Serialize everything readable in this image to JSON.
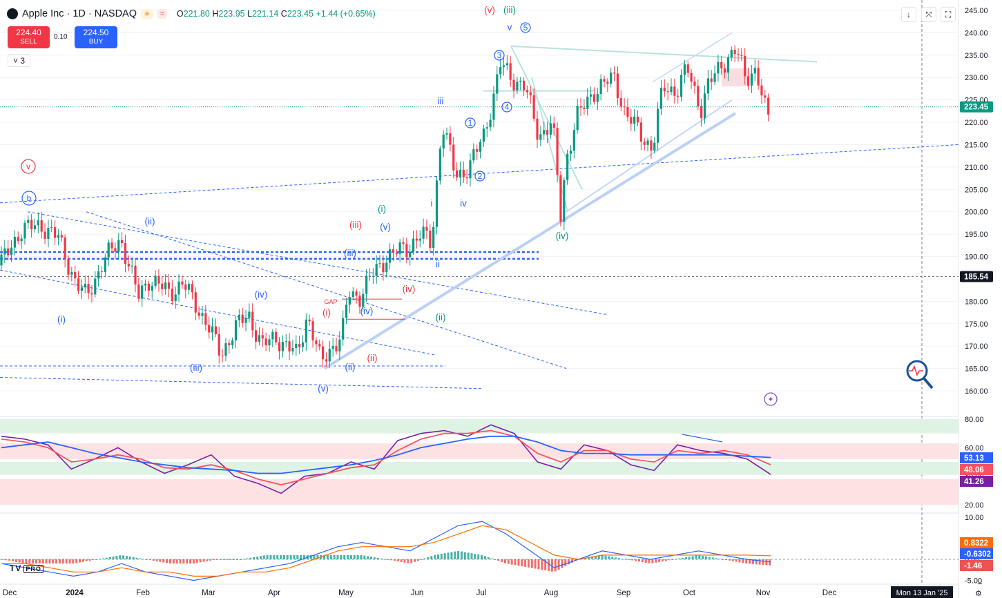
{
  "header": {
    "symbol": "Apple Inc · 1D · NASDAQ",
    "open_label": "O",
    "open": "221.80",
    "high_label": "H",
    "high": "223.95",
    "low_label": "L",
    "low": "221.14",
    "close_label": "C",
    "close": "223.45",
    "change": "+1.44 (+0.65%)"
  },
  "trade": {
    "sell_price": "224.40",
    "sell_label": "SELL",
    "spread": "0.10",
    "buy_price": "224.50",
    "buy_label": "BUY"
  },
  "indicator_count": "3",
  "toolbar": {
    "download": "↓",
    "fullscreen_toggle": "⤧",
    "screenshot": "⛶"
  },
  "brand": {
    "name": "TV",
    "tier": "PRO"
  },
  "colors": {
    "up": "#089981",
    "down": "#f23645",
    "wave_blue": "#2962ff",
    "wave_red": "#f23645",
    "wave_green": "#089981",
    "rsi": "#7b1fa2",
    "rsi_ma": "#2962ff",
    "rsi_smooth": "#f7525f"
  },
  "chart_data": [
    {
      "type": "candlestick",
      "title": "Apple Inc · 1D · NASDAQ",
      "ylim": [
        155,
        245
      ],
      "y_ticks": [
        "245.00",
        "240.00",
        "235.00",
        "230.00",
        "225.00",
        "220.00",
        "215.00",
        "210.00",
        "205.00",
        "200.00",
        "195.00",
        "190.00",
        "185.00",
        "180.00",
        "175.00",
        "170.00",
        "165.00",
        "160.00"
      ],
      "x_ticks": [
        "Dec",
        "2024",
        "Feb",
        "Mar",
        "Apr",
        "May",
        "Jun",
        "Jul",
        "Aug",
        "Sep",
        "Oct",
        "Nov",
        "Dec"
      ],
      "last_price": "223.45",
      "marked_price": "185.54",
      "crosshair_date": "Mon 13 Jan '25",
      "close_path": [
        [
          0,
          188
        ],
        [
          30,
          196
        ],
        [
          60,
          197
        ],
        [
          85,
          194
        ],
        [
          110,
          184
        ],
        [
          125,
          181
        ],
        [
          150,
          189
        ],
        [
          175,
          194
        ],
        [
          200,
          181
        ],
        [
          215,
          185
        ],
        [
          245,
          182
        ],
        [
          265,
          184
        ],
        [
          300,
          175
        ],
        [
          320,
          168
        ],
        [
          340,
          174
        ],
        [
          360,
          177
        ],
        [
          380,
          170
        ],
        [
          400,
          172
        ],
        [
          430,
          168
        ],
        [
          445,
          177
        ],
        [
          465,
          166
        ],
        [
          475,
          169
        ],
        [
          495,
          172
        ],
        [
          505,
          182
        ],
        [
          520,
          181
        ],
        [
          540,
          186
        ],
        [
          560,
          190
        ],
        [
          575,
          191
        ],
        [
          590,
          192
        ],
        [
          610,
          195
        ],
        [
          625,
          193
        ],
        [
          640,
          220
        ],
        [
          660,
          208
        ],
        [
          680,
          210
        ],
        [
          700,
          217
        ],
        [
          715,
          226
        ],
        [
          725,
          233
        ],
        [
          740,
          230
        ],
        [
          760,
          228
        ],
        [
          780,
          217
        ],
        [
          800,
          220
        ],
        [
          812,
          199
        ],
        [
          820,
          212
        ],
        [
          835,
          221
        ],
        [
          860,
          227
        ],
        [
          890,
          230
        ],
        [
          905,
          222
        ],
        [
          925,
          218
        ],
        [
          945,
          214
        ],
        [
          960,
          228
        ],
        [
          980,
          227
        ],
        [
          995,
          232
        ],
        [
          1015,
          223
        ],
        [
          1025,
          228
        ],
        [
          1045,
          233
        ],
        [
          1065,
          236
        ],
        [
          1080,
          230
        ],
        [
          1095,
          232
        ],
        [
          1105,
          224
        ],
        [
          1112,
          221
        ],
        [
          1118,
          223.45
        ]
      ],
      "annotations": {
        "blue_waves": [
          "(ii)",
          "(i)",
          "(iv)",
          "(iii)",
          "(v)",
          "(iii)",
          "(iv)",
          "(ii)",
          "(v)",
          "iii",
          "v",
          "i",
          "iv",
          "ii"
        ],
        "blue_circled": [
          "b",
          "1",
          "2",
          "3",
          "4",
          "5"
        ],
        "red_waves": [
          "(v)",
          "(iii)",
          "(i)",
          "(iv)",
          "(ii)"
        ],
        "red_circled": [
          "v"
        ],
        "green_waves": [
          "(iii)",
          "(i)",
          "(ii)",
          "(iv)"
        ],
        "gap_label": "GAP"
      }
    },
    {
      "type": "line",
      "name": "RSI",
      "ylim": [
        20,
        80
      ],
      "y_ticks": [
        "80.00",
        "60.00",
        "40.00",
        "20.00"
      ],
      "series": [
        {
          "values": [
            68,
            66,
            62,
            45,
            52,
            60,
            50,
            42,
            48,
            55,
            40,
            35,
            28,
            40,
            42,
            50,
            45,
            65,
            70,
            72,
            68,
            76,
            70,
            50,
            45,
            62,
            58,
            48,
            44,
            62,
            58,
            56,
            52,
            41.26
          ]
        },
        {
          "values": [
            66,
            64,
            60,
            50,
            52,
            55,
            52,
            46,
            45,
            48,
            44,
            38,
            34,
            38,
            42,
            46,
            48,
            58,
            66,
            70,
            70,
            72,
            68,
            56,
            50,
            58,
            58,
            52,
            50,
            58,
            56,
            58,
            55,
            48.06
          ]
        },
        {
          "values": [
            60,
            62,
            64,
            60,
            56,
            53,
            50,
            48,
            46,
            45,
            44,
            42,
            42,
            44,
            46,
            48,
            51,
            55,
            60,
            63,
            66,
            68,
            68,
            64,
            58,
            56,
            56,
            55,
            55,
            55,
            55,
            55,
            54,
            53.13
          ]
        }
      ],
      "last_values": [
        "53.13",
        "48.06",
        "41.26"
      ]
    },
    {
      "type": "bar",
      "name": "MACD",
      "y_ticks": [
        "10.00",
        "0.00",
        "-5.00"
      ],
      "last_values": [
        "0.8322",
        "-0.6302",
        "-1.46"
      ],
      "macd_line": [
        -1,
        -2,
        -3,
        -4,
        -3,
        -1,
        -3,
        -4,
        -5,
        -4,
        -3,
        -2,
        -1,
        1,
        3,
        4,
        3,
        2,
        5,
        8,
        9,
        6,
        2,
        -2,
        0,
        2,
        1,
        0,
        1,
        2,
        1,
        0,
        -0.63
      ],
      "signal_line": [
        -1,
        -1,
        -2,
        -3,
        -3,
        -2,
        -3,
        -3,
        -4,
        -4,
        -3,
        -3,
        -2,
        0,
        2,
        3,
        3,
        3,
        4,
        6,
        8,
        7,
        4,
        1,
        0,
        1,
        1,
        1,
        1,
        1,
        1,
        1,
        0.83
      ]
    }
  ]
}
